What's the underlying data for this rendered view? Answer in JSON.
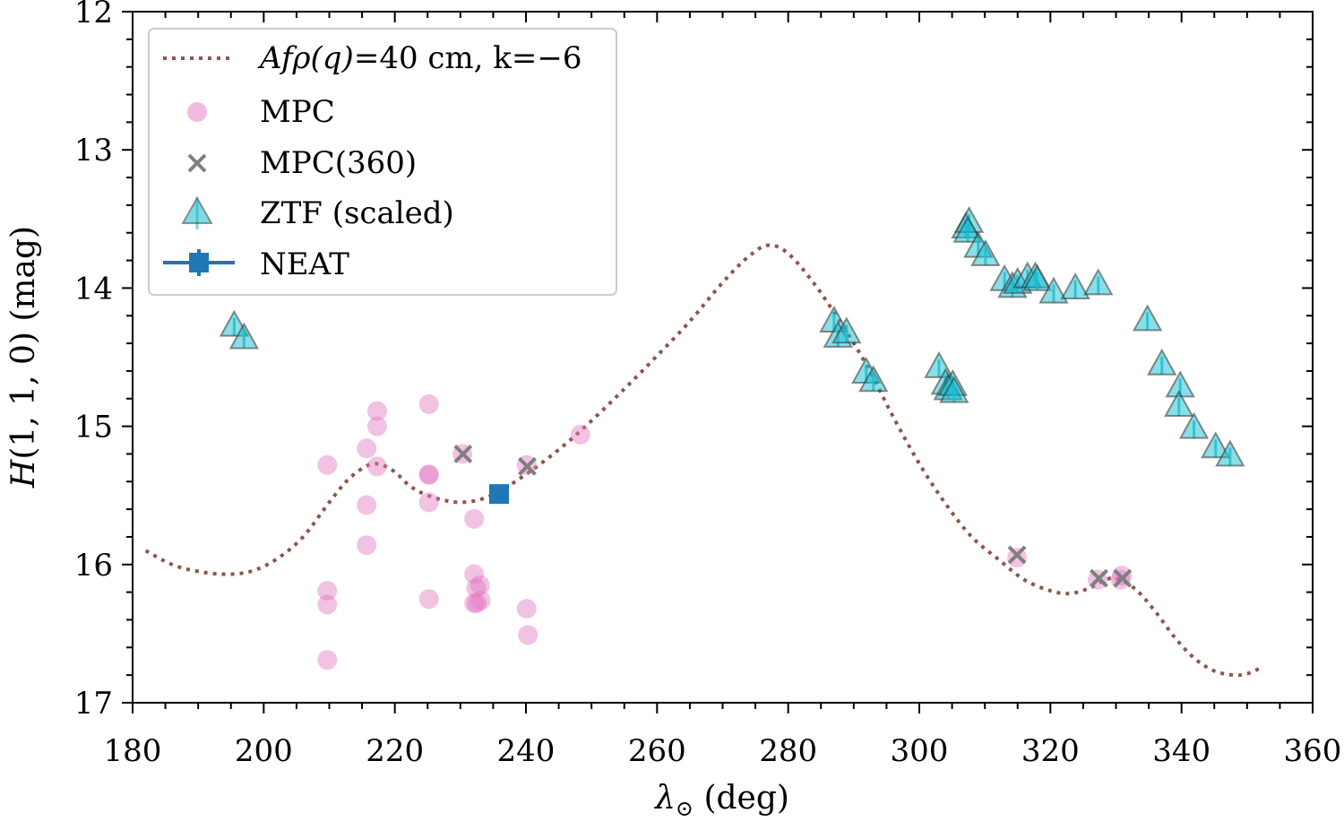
{
  "chart_data": {
    "type": "scatter",
    "xlabel": "λ⊙ (deg)",
    "ylabel": "H(1, 1, 0) (mag)",
    "xlim": [
      180,
      360
    ],
    "ylim": [
      17,
      12
    ],
    "y_inverted": true,
    "grid": false,
    "legend_position": "upper-left",
    "x_ticks": [
      "180",
      "200",
      "220",
      "240",
      "260",
      "280",
      "300",
      "320",
      "340",
      "360"
    ],
    "y_ticks": [
      "12",
      "13",
      "14",
      "15",
      "16",
      "17"
    ],
    "colors": {
      "model": "#8c564b",
      "mpc": "#e377c2",
      "mpc360": "#7f7f7f",
      "ztf": "#17becf",
      "neat": "#1f77b4"
    },
    "series": [
      {
        "name": "Afρ(q)=40 cm, k=−6",
        "label_parts": {
          "prefix": "Afρ(q)",
          "suffix": "=40 cm, k=−6"
        },
        "kind": "dotted-line",
        "x": [
          182,
          186,
          190,
          194,
          198,
          202,
          206,
          210,
          213,
          216,
          218,
          220,
          222,
          224,
          227,
          230,
          233,
          236,
          239,
          242,
          246,
          250,
          255,
          260,
          265,
          270,
          274,
          277,
          280,
          284,
          288,
          292,
          296,
          300,
          304,
          308,
          312,
          316,
          320,
          323,
          326,
          328,
          330,
          333,
          336,
          339,
          342,
          345,
          348,
          350,
          352
        ],
        "y": [
          15.9,
          16.0,
          16.05,
          16.07,
          16.05,
          15.96,
          15.8,
          15.55,
          15.38,
          15.28,
          15.28,
          15.33,
          15.42,
          15.48,
          15.53,
          15.55,
          15.53,
          15.47,
          15.38,
          15.28,
          15.13,
          14.96,
          14.73,
          14.49,
          14.24,
          13.96,
          13.77,
          13.69,
          13.75,
          13.97,
          14.25,
          14.56,
          14.93,
          15.27,
          15.56,
          15.8,
          15.96,
          16.11,
          16.19,
          16.21,
          16.17,
          16.12,
          16.1,
          16.18,
          16.34,
          16.53,
          16.68,
          16.77,
          16.8,
          16.79,
          16.75
        ]
      },
      {
        "name": "MPC",
        "kind": "circle",
        "x": [
          209.7,
          209.7,
          209.7,
          209.7,
          215.7,
          215.7,
          215.7,
          217.3,
          217.3,
          217.3,
          225.2,
          225.2,
          225.2,
          225.2,
          225.2,
          230.3,
          232.1,
          232.1,
          232.1,
          232.4,
          232.5,
          233.0,
          233.1,
          240.1,
          240.1,
          240.3,
          248.3,
          314.9,
          327.2,
          330.7,
          330.9
        ],
        "y": [
          15.28,
          16.19,
          16.29,
          16.69,
          15.16,
          15.57,
          15.86,
          14.89,
          15.0,
          15.29,
          14.84,
          15.35,
          15.35,
          15.55,
          16.25,
          15.2,
          15.67,
          16.07,
          16.28,
          16.17,
          16.28,
          16.15,
          16.26,
          15.28,
          16.32,
          16.51,
          15.06,
          15.95,
          16.11,
          16.11,
          16.08
        ]
      },
      {
        "name": "MPC(360)",
        "kind": "x",
        "x": [
          230.4,
          240.2,
          314.9,
          327.4,
          331.0
        ],
        "y": [
          15.2,
          15.29,
          15.93,
          16.1,
          16.1
        ]
      },
      {
        "name": "ZTF (scaled)",
        "kind": "triangle",
        "x": [
          195.5,
          197.0,
          287.0,
          287.6,
          288.9,
          291.9,
          293.0,
          303.0,
          304.0,
          304.4,
          305.1,
          305.3,
          307.1,
          307.6,
          307.4,
          309.0,
          310.1,
          313.0,
          314.2,
          315.0,
          316.5,
          317.7,
          318.0,
          320.5,
          323.8,
          327.3,
          334.8,
          337.0,
          339.8,
          339.6,
          341.9,
          345.2,
          347.4
        ],
        "y": [
          14.28,
          14.37,
          14.25,
          14.36,
          14.33,
          14.62,
          14.68,
          14.58,
          14.7,
          14.74,
          14.71,
          14.76,
          13.57,
          13.53,
          13.6,
          13.71,
          13.77,
          13.95,
          14.0,
          13.97,
          13.93,
          13.93,
          13.95,
          14.04,
          14.01,
          13.98,
          14.24,
          14.56,
          14.72,
          14.86,
          15.02,
          15.16,
          15.22
        ]
      },
      {
        "name": "NEAT",
        "kind": "square",
        "x": [
          235.9
        ],
        "y": [
          15.49
        ]
      }
    ]
  }
}
